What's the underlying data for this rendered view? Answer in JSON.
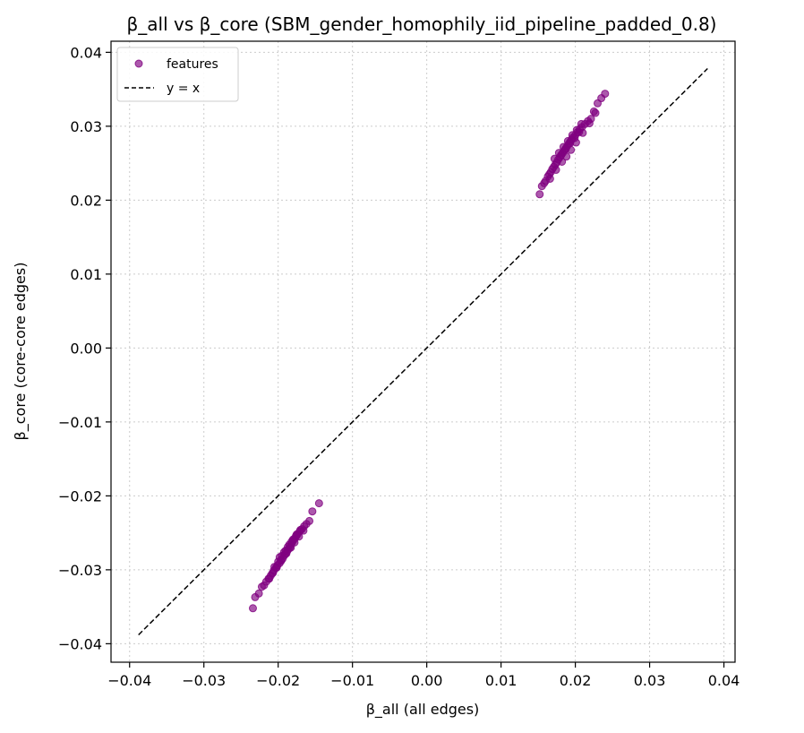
{
  "chart_data": {
    "type": "scatter",
    "title": "β_all vs β_core (SBM_gender_homophily_iid_pipeline_padded_0.8)",
    "xlabel": "β_all (all edges)",
    "ylabel": "β_core (core-core edges)",
    "xlim": [
      -0.0425,
      0.0415
    ],
    "ylim": [
      -0.0425,
      0.0415
    ],
    "xticks": [
      "−0.04",
      "−0.03",
      "−0.02",
      "−0.01",
      "0.00",
      "0.01",
      "0.02",
      "0.03",
      "0.04"
    ],
    "yticks": [
      "−0.04",
      "−0.03",
      "−0.02",
      "−0.01",
      "0.00",
      "0.01",
      "0.02",
      "0.03",
      "0.04"
    ],
    "grid": true,
    "legend_position": "top-left",
    "legend": [
      "features",
      "y = x"
    ],
    "colors": {
      "points": "#800080",
      "reference": "#000000"
    },
    "series": [
      {
        "name": "features",
        "x": [
          -0.0234,
          -0.0231,
          -0.0226,
          -0.0222,
          -0.0219,
          -0.0216,
          -0.0213,
          -0.021,
          -0.0208,
          -0.0206,
          -0.0203,
          -0.0201,
          -0.0198,
          -0.0196,
          -0.0194,
          -0.0192,
          -0.019,
          -0.0188,
          -0.0186,
          -0.0184,
          -0.0182,
          -0.018,
          -0.0178,
          -0.0176,
          -0.0174,
          -0.0171,
          -0.0168,
          -0.0165,
          -0.0162,
          -0.0158,
          -0.0154,
          -0.0145,
          -0.0205,
          -0.02,
          -0.0195,
          -0.019,
          -0.0185,
          -0.018,
          -0.0175,
          -0.017,
          -0.0198,
          -0.0192,
          -0.0187,
          -0.0182,
          -0.0176,
          -0.0212,
          -0.0207,
          -0.0202,
          -0.0196,
          -0.0189,
          -0.0183,
          -0.0178,
          -0.0172,
          -0.0166
        ],
        "y": [
          -0.0352,
          -0.0337,
          -0.0332,
          -0.0323,
          -0.0321,
          -0.0316,
          -0.0312,
          -0.0308,
          -0.0305,
          -0.0301,
          -0.0297,
          -0.0294,
          -0.0291,
          -0.0288,
          -0.0285,
          -0.0281,
          -0.0278,
          -0.0275,
          -0.0272,
          -0.0269,
          -0.0265,
          -0.0261,
          -0.0258,
          -0.0254,
          -0.0252,
          -0.0248,
          -0.0245,
          -0.0241,
          -0.0238,
          -0.0234,
          -0.0221,
          -0.021,
          -0.0296,
          -0.0289,
          -0.0281,
          -0.0274,
          -0.0266,
          -0.0259,
          -0.0252,
          -0.0246,
          -0.0283,
          -0.0276,
          -0.0269,
          -0.0262,
          -0.0255,
          -0.0312,
          -0.0304,
          -0.0297,
          -0.0287,
          -0.0278,
          -0.027,
          -0.0263,
          -0.0255,
          -0.0247
        ]
      },
      {
        "name": "features",
        "x": [
          0.0152,
          0.0155,
          0.0158,
          0.016,
          0.0163,
          0.0165,
          0.0167,
          0.0169,
          0.0171,
          0.0173,
          0.0175,
          0.0177,
          0.0179,
          0.0181,
          0.0183,
          0.0185,
          0.0187,
          0.0189,
          0.0191,
          0.0193,
          0.0195,
          0.0197,
          0.02,
          0.0203,
          0.0206,
          0.0209,
          0.0213,
          0.0217,
          0.0221,
          0.0225,
          0.023,
          0.0235,
          0.024,
          0.0172,
          0.0178,
          0.0184,
          0.019,
          0.0196,
          0.0202,
          0.0208,
          0.0181,
          0.0187,
          0.0193,
          0.0199,
          0.0205,
          0.0166,
          0.0174,
          0.0182,
          0.0188,
          0.0194,
          0.0201,
          0.021,
          0.0219,
          0.0227
        ],
        "y": [
          0.0208,
          0.0219,
          0.0223,
          0.0226,
          0.0232,
          0.0235,
          0.0238,
          0.0242,
          0.0245,
          0.0248,
          0.0251,
          0.0255,
          0.0258,
          0.0261,
          0.0264,
          0.0267,
          0.027,
          0.0273,
          0.0276,
          0.0279,
          0.0282,
          0.0285,
          0.0288,
          0.0292,
          0.0296,
          0.0299,
          0.0303,
          0.0307,
          0.031,
          0.032,
          0.0331,
          0.0338,
          0.0344,
          0.0256,
          0.0264,
          0.0272,
          0.028,
          0.0288,
          0.0295,
          0.0303,
          0.0261,
          0.0269,
          0.0277,
          0.0284,
          0.0292,
          0.0229,
          0.0241,
          0.0252,
          0.0259,
          0.0268,
          0.0278,
          0.0291,
          0.0304,
          0.0318
        ]
      },
      {
        "name": "y = x",
        "x": [
          -0.0388,
          0.0378
        ],
        "y": [
          -0.0388,
          0.0378
        ]
      }
    ]
  }
}
